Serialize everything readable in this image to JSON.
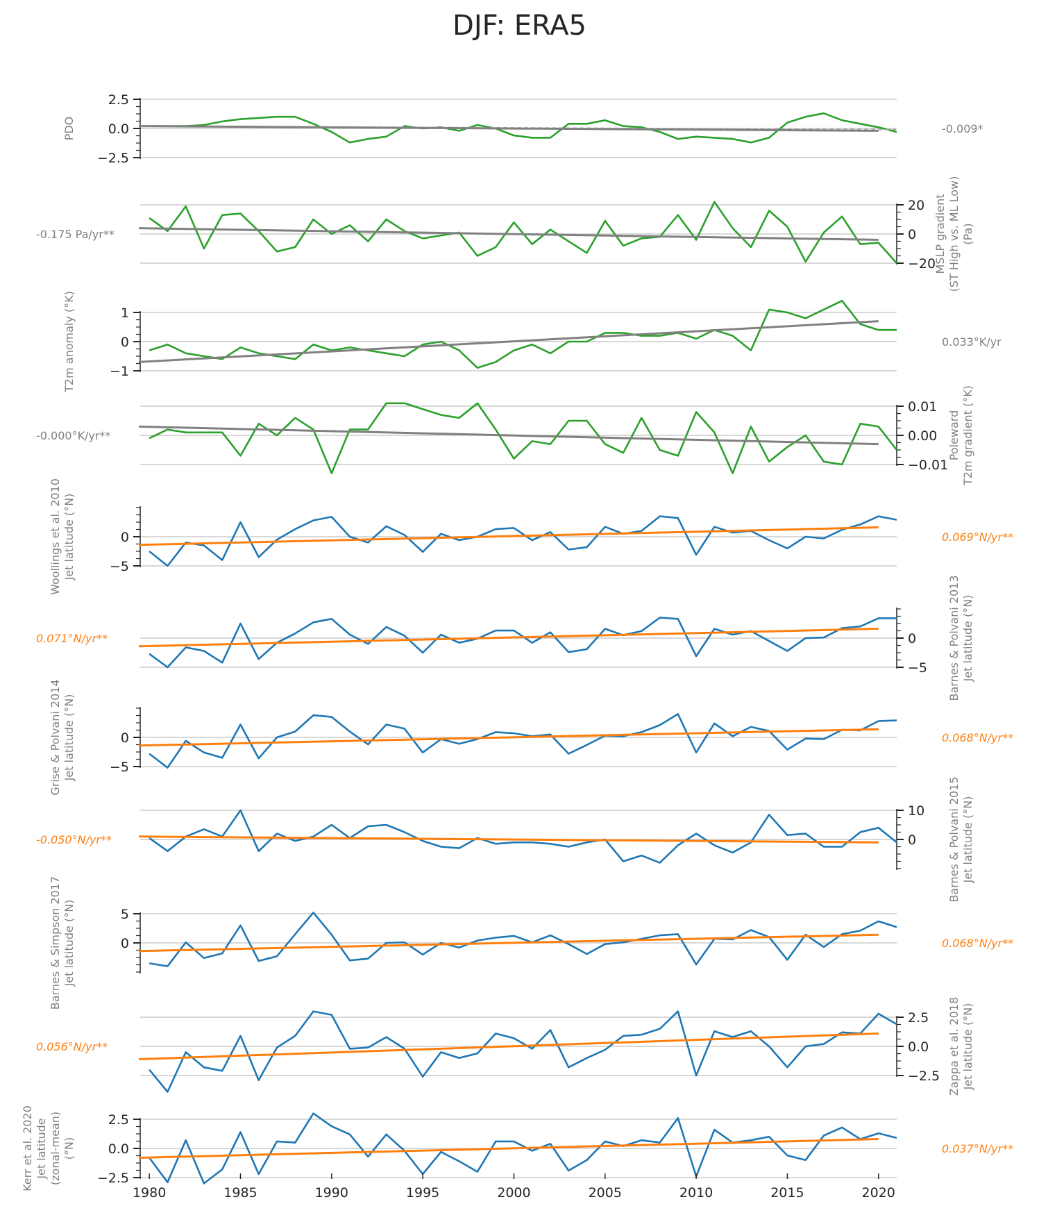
{
  "title": "DJF: ERA5",
  "chart_data": {
    "type": "line",
    "x": [
      1980,
      1981,
      1982,
      1983,
      1984,
      1985,
      1986,
      1987,
      1988,
      1989,
      1990,
      1991,
      1992,
      1993,
      1994,
      1995,
      1996,
      1997,
      1998,
      1999,
      2000,
      2001,
      2002,
      2003,
      2004,
      2005,
      2006,
      2007,
      2008,
      2009,
      2010,
      2011,
      2012,
      2013,
      2014,
      2015,
      2016,
      2017,
      2018,
      2019,
      2020,
      2021
    ],
    "xlim": [
      1979.5,
      2021
    ],
    "xticks": [
      "1980",
      "1985",
      "1990",
      "1995",
      "2000",
      "2005",
      "2010",
      "2015",
      "2020"
    ],
    "xtick_values": [
      1980,
      1985,
      1990,
      1995,
      2000,
      2005,
      2010,
      2015,
      2020
    ],
    "colors": {
      "index": "#2ca02c",
      "jet": "#1f77b4",
      "trend_index": "#808080",
      "trend_jet": "#ff7f0e",
      "grid": "#cccccc",
      "label": "#808080"
    },
    "panels": [
      {
        "ylabel": [
          "PDO"
        ],
        "ylabel_side": "left",
        "axis_side": "left",
        "ylim": [
          -2.5,
          2.5
        ],
        "yticks": [
          2.5,
          0.0,
          -2.5
        ],
        "ytick_labels": [
          "2.5",
          "0.0",
          "−2.5"
        ],
        "color": "#2ca02c",
        "trend_color": "#808080",
        "values": [
          0.2,
          0.2,
          0.2,
          0.3,
          0.6,
          0.8,
          0.9,
          1.0,
          1.0,
          0.4,
          -0.3,
          -1.2,
          -0.9,
          -0.7,
          0.2,
          0.0,
          0.1,
          -0.2,
          0.3,
          0.0,
          -0.6,
          -0.8,
          -0.8,
          0.4,
          0.4,
          0.7,
          0.2,
          0.1,
          -0.3,
          -0.9,
          -0.7,
          -0.8,
          -0.9,
          -1.2,
          -0.8,
          0.5,
          1.0,
          1.3,
          0.7,
          0.4,
          0.1,
          -0.3
        ],
        "trend": [
          0.2,
          -0.2
        ],
        "trend_dashed": [
          0.2,
          -0.1
        ],
        "trend_label": "-0.009*",
        "trend_label_side": "right"
      },
      {
        "ylabel": [
          "MSLP gradient",
          "(ST High vs. ML Low)",
          "(Pa)"
        ],
        "ylabel_side": "right",
        "axis_side": "right",
        "ylim": [
          -20,
          20
        ],
        "yticks": [
          20,
          0,
          -20
        ],
        "ytick_labels": [
          "20",
          "0",
          "−20"
        ],
        "color": "#2ca02c",
        "trend_color": "#808080",
        "values": [
          11,
          2,
          19,
          -10,
          13,
          14,
          2,
          -12,
          -9,
          10,
          0,
          6,
          -5,
          10,
          2,
          -3,
          -1,
          1,
          -15,
          -9,
          8,
          -7,
          3,
          -5,
          -13,
          9,
          -8,
          -3,
          -2,
          13,
          -4,
          22,
          4,
          -9,
          16,
          5,
          -19,
          1,
          12,
          -7,
          -6,
          -20
        ],
        "trend": [
          4,
          -4
        ],
        "trend_label": "-0.175 Pa/yr**",
        "trend_label_side": "left"
      },
      {
        "ylabel": [
          "T2m anomaly (°K)"
        ],
        "ylabel_side": "left",
        "axis_side": "left",
        "ylim": [
          -1,
          1
        ],
        "yticks": [
          1,
          0,
          -1
        ],
        "ytick_labels": [
          "1",
          "0",
          "−1"
        ],
        "color": "#2ca02c",
        "trend_color": "#808080",
        "values": [
          -0.3,
          -0.1,
          -0.4,
          -0.5,
          -0.6,
          -0.2,
          -0.4,
          -0.5,
          -0.6,
          -0.1,
          -0.3,
          -0.2,
          -0.3,
          -0.4,
          -0.5,
          -0.1,
          0.0,
          -0.3,
          -0.9,
          -0.7,
          -0.3,
          -0.1,
          -0.4,
          0.0,
          0.0,
          0.3,
          0.3,
          0.2,
          0.2,
          0.3,
          0.1,
          0.4,
          0.2,
          -0.3,
          1.1,
          1.0,
          0.8,
          1.1,
          1.4,
          0.6,
          0.4,
          0.4
        ],
        "trend": [
          -0.7,
          0.7
        ],
        "trend_label": "0.033°K/yr",
        "trend_label_side": "right"
      },
      {
        "ylabel": [
          "Poleward",
          "T2m gradient (°K)"
        ],
        "ylabel_side": "right",
        "axis_side": "right",
        "ylim": [
          -0.01,
          0.01
        ],
        "yticks": [
          0.01,
          0.0,
          -0.01
        ],
        "ytick_labels": [
          "0.01",
          "0.00",
          "−0.01"
        ],
        "color": "#2ca02c",
        "trend_color": "#808080",
        "values": [
          -0.001,
          0.002,
          0.001,
          0.001,
          0.001,
          -0.007,
          0.004,
          0.0,
          0.006,
          0.002,
          -0.013,
          0.002,
          0.002,
          0.011,
          0.011,
          0.009,
          0.007,
          0.006,
          0.011,
          0.002,
          -0.008,
          -0.002,
          -0.003,
          0.005,
          0.005,
          -0.003,
          -0.006,
          0.006,
          -0.005,
          -0.007,
          0.008,
          0.001,
          -0.013,
          0.003,
          -0.009,
          -0.004,
          0.0,
          -0.009,
          -0.01,
          0.004,
          0.003,
          -0.005
        ],
        "trend": [
          0.003,
          -0.003
        ],
        "trend_label": "-0.000°K/yr**",
        "trend_label_side": "left"
      },
      {
        "ylabel": [
          "Woollings et al. 2010",
          "Jet latitude (°N)"
        ],
        "ylabel_side": "left",
        "axis_side": "left",
        "ylim": [
          -5,
          5
        ],
        "yticks": [
          0,
          -5
        ],
        "ytick_labels": [
          "0",
          "−5"
        ],
        "color": "#1f77b4",
        "trend_color": "#ff7f0e",
        "values": [
          -2.5,
          -5,
          -1,
          -1.5,
          -4,
          2.5,
          -3.5,
          -0.5,
          1.3,
          2.8,
          3.4,
          0,
          -1,
          1.8,
          0.3,
          -2.6,
          0.5,
          -0.6,
          0,
          1.3,
          1.5,
          -0.6,
          0.8,
          -2.2,
          -1.8,
          1.7,
          0.5,
          1,
          3.5,
          3.2,
          -3.1,
          1.7,
          0.7,
          1,
          -0.6,
          -2,
          0,
          -0.3,
          1.2,
          2.1,
          3.5,
          2.9
        ],
        "trend": [
          -1.4,
          1.6
        ],
        "trend_label": "0.069°N/yr**",
        "trend_label_side": "right"
      },
      {
        "ylabel": [
          "Barnes & Polvani 2013",
          "Jet latitude (°N)"
        ],
        "ylabel_side": "right",
        "axis_side": "right",
        "ylim": [
          -5,
          5
        ],
        "yticks": [
          0,
          -5
        ],
        "ytick_labels": [
          "0",
          "−5"
        ],
        "color": "#1f77b4",
        "trend_color": "#ff7f0e",
        "values": [
          -2.7,
          -5,
          -1.6,
          -2.2,
          -4.2,
          2.5,
          -3.6,
          -0.8,
          0.8,
          2.7,
          3.3,
          0.6,
          -1,
          1.9,
          0.4,
          -2.5,
          0.6,
          -0.8,
          -0.1,
          1.3,
          1.3,
          -0.8,
          1,
          -2.4,
          -1.9,
          1.6,
          0.5,
          1.2,
          3.5,
          3.3,
          -3.1,
          1.6,
          0.6,
          1.2,
          -0.5,
          -2.2,
          0,
          0.1,
          1.7,
          2,
          3.4,
          3.4
        ],
        "trend": [
          -1.4,
          1.6
        ],
        "trend_label": "0.071°N/yr**",
        "trend_label_side": "left"
      },
      {
        "ylabel": [
          "Grise & Polvani 2014",
          "Jet latitude (°N)"
        ],
        "ylabel_side": "left",
        "axis_side": "left",
        "ylim": [
          -5,
          5
        ],
        "yticks": [
          0,
          -5
        ],
        "ytick_labels": [
          "0",
          "−5"
        ],
        "color": "#1f77b4",
        "trend_color": "#ff7f0e",
        "values": [
          -2.8,
          -5.2,
          -0.6,
          -2.6,
          -3.5,
          2.2,
          -3.6,
          0,
          1,
          3.8,
          3.5,
          1,
          -1.2,
          2.2,
          1.5,
          -2.6,
          -0.3,
          -1.1,
          -0.3,
          0.9,
          0.7,
          0.2,
          0.5,
          -2.8,
          -1.3,
          0.3,
          0.2,
          0.9,
          2.1,
          4,
          -2.6,
          2.4,
          0.2,
          1.8,
          1.1,
          -2.1,
          -0.2,
          -0.3,
          1.3,
          1.2,
          2.8,
          2.9
        ],
        "trend": [
          -1.4,
          1.4
        ],
        "trend_label": "0.068°N/yr**",
        "trend_label_side": "right"
      },
      {
        "ylabel": [
          "Barnes & Polvani 2015",
          "Jet latitude (°N)"
        ],
        "ylabel_side": "right",
        "axis_side": "right",
        "ylim": [
          -10,
          10
        ],
        "yticks": [
          10,
          0
        ],
        "ytick_labels": [
          "10",
          "0"
        ],
        "color": "#1f77b4",
        "trend_color": "#ff7f0e",
        "values": [
          0.5,
          -4,
          1,
          3.5,
          1,
          10,
          -4,
          2,
          -0.5,
          1,
          5,
          0.5,
          4.5,
          5,
          2.5,
          -0.5,
          -2.5,
          -3,
          0.5,
          -1.5,
          -1,
          -1,
          -1.5,
          -2.5,
          -1,
          0,
          -7.5,
          -5.5,
          -8,
          -2,
          2,
          -2,
          -4.5,
          -1,
          8.5,
          1.5,
          2,
          -2.5,
          -2.5,
          2.5,
          4,
          -1
        ],
        "trend": [
          1,
          -1
        ],
        "trend_label": "-0.050°N/yr**",
        "trend_label_side": "left"
      },
      {
        "ylabel": [
          "Barnes & Simpson 2017",
          "Jet latitude (°N)"
        ],
        "ylabel_side": "left",
        "axis_side": "left",
        "ylim": [
          -5,
          5
        ],
        "yticks": [
          5,
          0
        ],
        "ytick_labels": [
          "5",
          "0"
        ],
        "color": "#1f77b4",
        "trend_color": "#ff7f0e",
        "values": [
          -3.5,
          -4,
          0.1,
          -2.6,
          -1.8,
          3,
          -3.1,
          -2.3,
          1.5,
          5.2,
          1.4,
          -3,
          -2.7,
          0,
          0.1,
          -2,
          0,
          -0.8,
          0.4,
          0.9,
          1.2,
          0.1,
          1.3,
          -0.2,
          -1.9,
          -0.2,
          0.1,
          0.7,
          1.3,
          1.5,
          -3.7,
          0.7,
          0.6,
          2.2,
          1,
          -2.9,
          1.4,
          -0.7,
          1.5,
          2.1,
          3.7,
          2.7
        ],
        "trend": [
          -1.4,
          1.4
        ],
        "trend_label": "0.068°N/yr**",
        "trend_label_side": "right"
      },
      {
        "ylabel": [
          "Zappa et al. 2018",
          "Jet latitude (°N)"
        ],
        "ylabel_side": "right",
        "axis_side": "right",
        "ylim": [
          -2.5,
          2.5
        ],
        "yticks": [
          2.5,
          0.0,
          -2.5
        ],
        "ytick_labels": [
          "2.5",
          "0.0",
          "−2.5"
        ],
        "color": "#1f77b4",
        "trend_color": "#ff7f0e",
        "values": [
          -2,
          -3.9,
          -0.5,
          -1.8,
          -2.1,
          0.9,
          -2.9,
          -0.1,
          0.9,
          3,
          2.7,
          -0.2,
          -0.1,
          0.8,
          -0.2,
          -2.6,
          -0.5,
          -1,
          -0.6,
          1.1,
          0.7,
          -0.2,
          1.4,
          -1.8,
          -1,
          -0.3,
          0.9,
          1,
          1.5,
          3,
          -2.5,
          1.3,
          0.8,
          1.3,
          0,
          -1.8,
          0,
          0.2,
          1.2,
          1.1,
          2.8,
          1.9
        ],
        "trend": [
          -1.1,
          1.1
        ],
        "trend_label": "0.056°N/yr**",
        "trend_label_side": "left"
      },
      {
        "ylabel": [
          "Kerr et al. 2020",
          "Jet latitude",
          "(zonal-mean)",
          "(°N)"
        ],
        "ylabel_side": "left",
        "axis_side": "left",
        "ylim": [
          -2.5,
          2.5
        ],
        "yticks": [
          2.5,
          0.0,
          -2.5
        ],
        "ytick_labels": [
          "2.5",
          "0.0",
          "−2.5"
        ],
        "color": "#1f77b4",
        "trend_color": "#ff7f0e",
        "values": [
          -0.8,
          -2.9,
          0.7,
          -3,
          -1.8,
          1.4,
          -2.2,
          0.6,
          0.5,
          3,
          1.9,
          1.2,
          -0.7,
          1.2,
          -0.2,
          -2.2,
          -0.3,
          -1.1,
          -2,
          0.6,
          0.6,
          -0.2,
          0.4,
          -1.9,
          -1,
          0.6,
          0.2,
          0.7,
          0.5,
          2.6,
          -2.4,
          1.6,
          0.5,
          0.7,
          1,
          -0.6,
          -1,
          1.1,
          1.8,
          0.8,
          1.3,
          0.9
        ],
        "trend": [
          -0.8,
          0.8
        ],
        "trend_label": "0.037°N/yr**",
        "trend_label_side": "right"
      }
    ]
  }
}
